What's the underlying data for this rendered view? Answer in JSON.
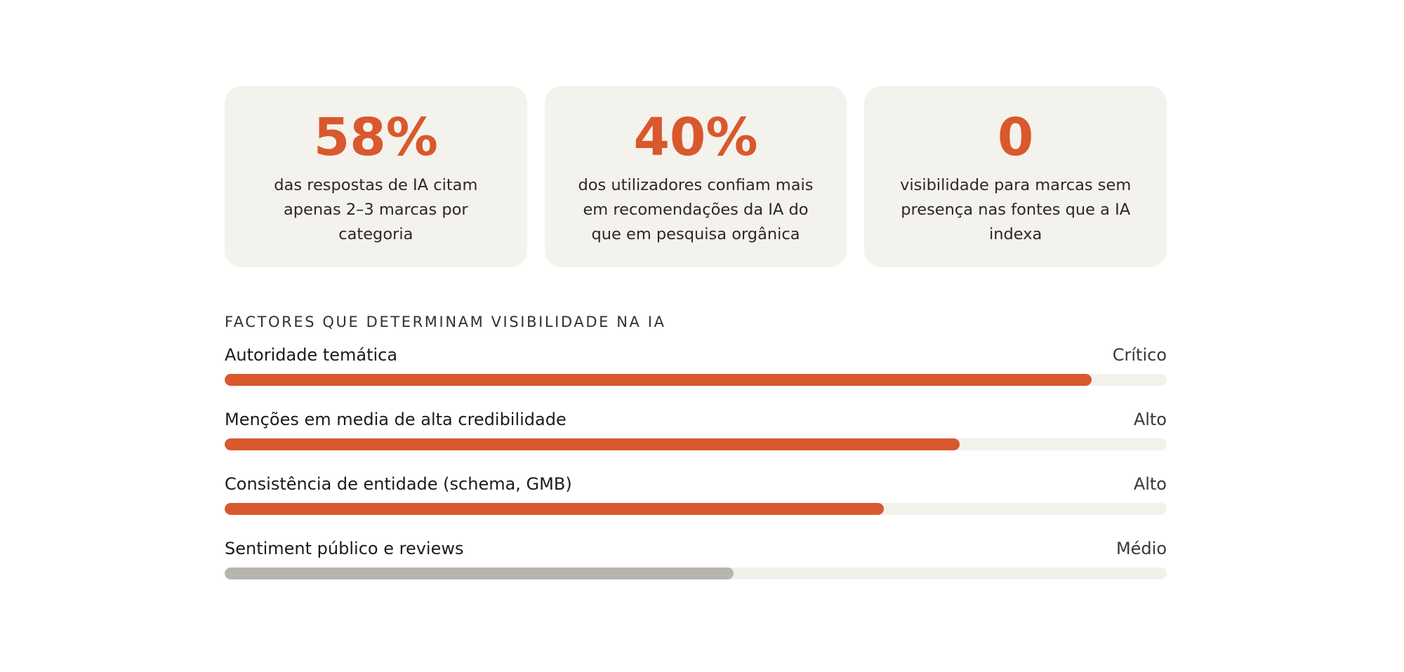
{
  "colors": {
    "accent": "#d9582d",
    "muted_bar": "#b8b5b0",
    "card_bg": "#f4f2ec",
    "track_bg": "#f3f1ec"
  },
  "stats": [
    {
      "value": "58%",
      "description": "das respostas de IA citam apenas 2–3 marcas por categoria"
    },
    {
      "value": "40%",
      "description": "dos utilizadores confiam mais em recomendações da IA do que em pesquisa orgânica"
    },
    {
      "value": "0",
      "description": "visibilidade para marcas sem presença nas fontes que a IA indexa"
    }
  ],
  "factors_section": {
    "title": "FACTORES QUE DETERMINAM VISIBILIDADE NA IA",
    "items": [
      {
        "label": "Autoridade temática",
        "level": "Crítico",
        "score": 0.92,
        "bar_color": "#d9582d"
      },
      {
        "label": "Menções em media de alta credibilidade",
        "level": "Alto",
        "score": 0.78,
        "bar_color": "#d9582d"
      },
      {
        "label": "Consistência de entidade (schema, GMB)",
        "level": "Alto",
        "score": 0.7,
        "bar_color": "#d9582d"
      },
      {
        "label": "Sentiment público e reviews",
        "level": "Médio",
        "score": 0.54,
        "bar_color": "#b8b5b0"
      }
    ]
  }
}
